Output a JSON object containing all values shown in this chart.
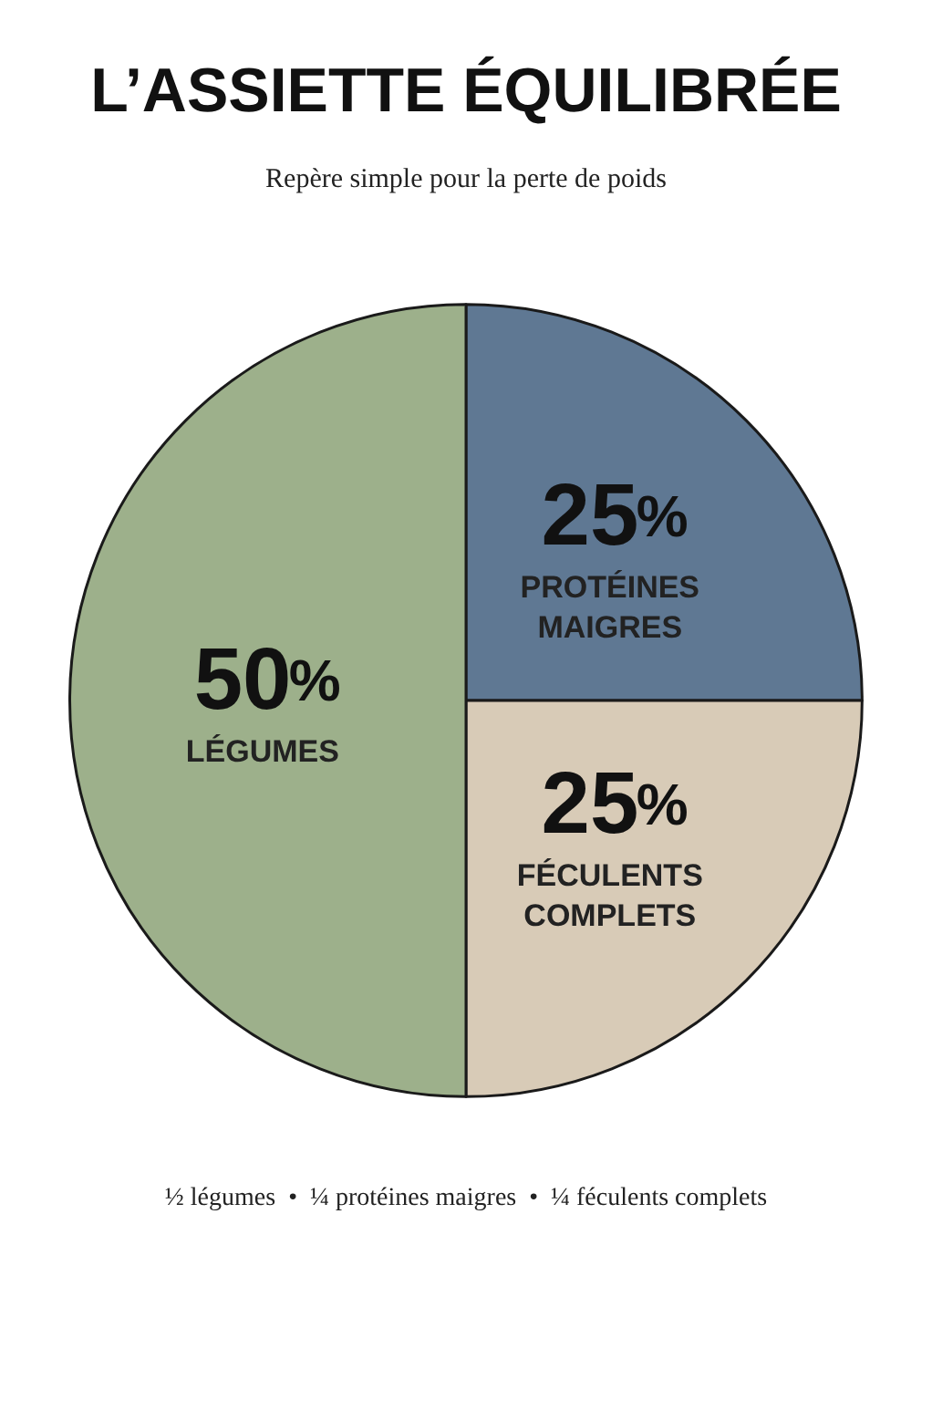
{
  "chart_data": {
    "type": "pie",
    "title": "L’ASSIETTE ÉQUILIBRÉE",
    "subtitle": "Repère simple pour la perte de poids",
    "categories": [
      "PROTÉINES MAIGRES",
      "FÉCULENTS COMPLETS",
      "LÉGUMES"
    ],
    "values": [
      25,
      25,
      50
    ],
    "colors": [
      "#5f7893",
      "#d8cbb7",
      "#9db08b"
    ],
    "value_labels": [
      "25%",
      "25%",
      "50%"
    ],
    "legend": false,
    "annotations": [
      "½ légumes  •  ¼ protéines maigres  •  ¼ féculents complets"
    ]
  }
}
